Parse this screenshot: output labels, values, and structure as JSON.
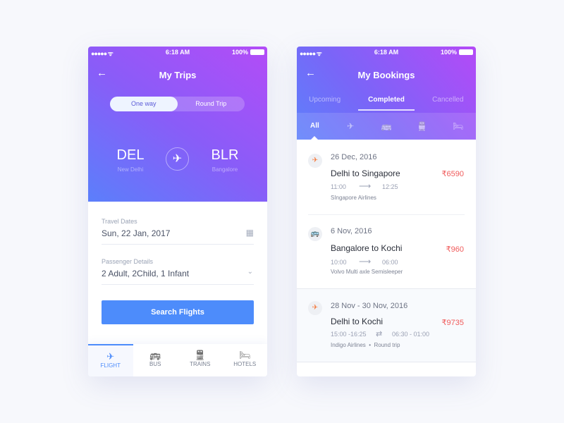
{
  "status": {
    "signal": "●●●●● ᯤ",
    "time": "6:18 AM",
    "battery": "100%"
  },
  "trips": {
    "title": "My Trips",
    "toggle": [
      "One way",
      "Round Trip"
    ],
    "from": {
      "code": "DEL",
      "city": "New Delhi"
    },
    "to": {
      "code": "BLR",
      "city": "Bangalore"
    },
    "travel_dates_label": "Travel Dates",
    "travel_dates": "Sun, 22 Jan, 2017",
    "passenger_label": "Passenger Details",
    "passengers": "2 Adult, 2Child, 1 Infant",
    "search_button": "Search Flights",
    "tabs": [
      {
        "icon": "✈",
        "label": "FLIGHT"
      },
      {
        "icon": "🚌",
        "label": "BUS"
      },
      {
        "icon": "🚆",
        "label": "TRAINS"
      },
      {
        "icon": "🛏",
        "label": "HOTELS"
      }
    ]
  },
  "bookings": {
    "title": "My Bookings",
    "tabs": [
      "Upcoming",
      "Completed",
      "Cancelled"
    ],
    "filters": [
      "All",
      "✈",
      "🚌",
      "🚆",
      "🛏"
    ],
    "items": [
      {
        "icon": "✈",
        "icon_color": "#f5793b",
        "date": "26 Dec, 2016",
        "route": "Delhi to Singapore",
        "price": "₹6590",
        "dep": "11:00",
        "arrow": "⟶",
        "arr": "12:25",
        "operator": "SIngapore Airlines"
      },
      {
        "icon": "🚌",
        "icon_color": "#f05a7a",
        "date": "6 Nov, 2016",
        "route": "Bangalore to Kochi",
        "price": "₹960",
        "dep": "10:00",
        "arrow": "⟶",
        "arr": "06:00",
        "operator": "Volvo Multi axle Semisleeper"
      },
      {
        "icon": "✈",
        "icon_color": "#f5793b",
        "date": "28 Nov - 30 Nov, 2016",
        "route": "Delhi to Kochi",
        "price": "₹9735",
        "dep": "15:00 -16:25",
        "arrow": "⇄",
        "arr": "06:30 - 01:00",
        "operator": "Indigo Airlines  •  Round trip"
      }
    ]
  },
  "colors": {
    "accent": "#4d8cfb",
    "price": "#f05a5a"
  }
}
